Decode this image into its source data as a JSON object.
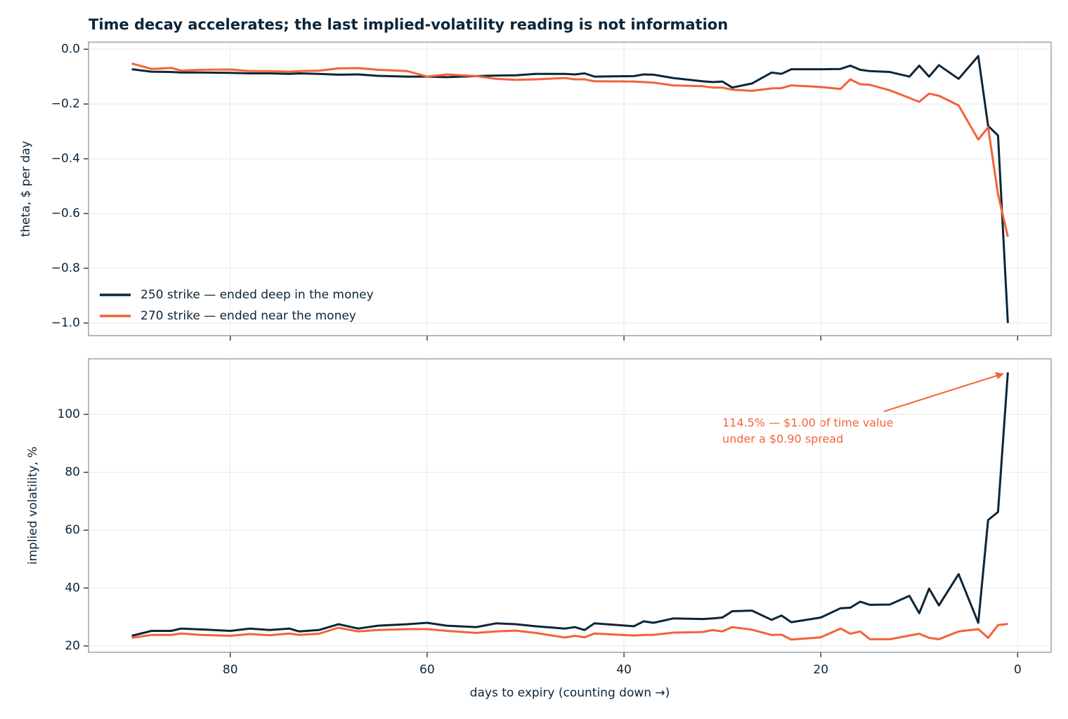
{
  "chart_data": [
    {
      "type": "line",
      "title": "Time decay accelerates; the last implied-volatility reading is not information",
      "ylabel": "theta, $ per day",
      "x": [
        90,
        88,
        86,
        85,
        83,
        80,
        78,
        76,
        74,
        73,
        71,
        69,
        67,
        65,
        62,
        60,
        58,
        55,
        53,
        51,
        49,
        46,
        45,
        44,
        43,
        39,
        38,
        37,
        35,
        32,
        31,
        30,
        29,
        27,
        25,
        24,
        23,
        20,
        18,
        17,
        16,
        15,
        13,
        11,
        10,
        9,
        8,
        6,
        4,
        3,
        2,
        1
      ],
      "series": [
        {
          "name": "250 strike — ended deep in the money",
          "color": "#0d2538",
          "values": [
            -0.073,
            -0.082,
            -0.083,
            -0.085,
            -0.085,
            -0.086,
            -0.088,
            -0.088,
            -0.09,
            -0.088,
            -0.09,
            -0.093,
            -0.092,
            -0.097,
            -0.1,
            -0.1,
            -0.102,
            -0.098,
            -0.096,
            -0.095,
            -0.09,
            -0.09,
            -0.092,
            -0.088,
            -0.1,
            -0.098,
            -0.092,
            -0.093,
            -0.105,
            -0.117,
            -0.12,
            -0.118,
            -0.14,
            -0.125,
            -0.085,
            -0.09,
            -0.073,
            -0.073,
            -0.072,
            -0.06,
            -0.075,
            -0.08,
            -0.083,
            -0.1,
            -0.06,
            -0.1,
            -0.058,
            -0.108,
            -0.025,
            -0.28,
            -0.315,
            -1.0
          ]
        },
        {
          "name": "270 strike — ended near the money",
          "color": "#f4623a",
          "values": [
            -0.052,
            -0.072,
            -0.068,
            -0.078,
            -0.075,
            -0.074,
            -0.08,
            -0.08,
            -0.082,
            -0.08,
            -0.078,
            -0.07,
            -0.069,
            -0.075,
            -0.08,
            -0.1,
            -0.092,
            -0.098,
            -0.108,
            -0.112,
            -0.11,
            -0.105,
            -0.11,
            -0.11,
            -0.117,
            -0.118,
            -0.12,
            -0.122,
            -0.132,
            -0.135,
            -0.14,
            -0.14,
            -0.148,
            -0.152,
            -0.143,
            -0.142,
            -0.132,
            -0.138,
            -0.145,
            -0.11,
            -0.128,
            -0.13,
            -0.15,
            -0.178,
            -0.192,
            -0.162,
            -0.17,
            -0.205,
            -0.33,
            -0.285,
            -0.53,
            -0.685
          ]
        }
      ],
      "xlim": [
        94.4,
        -3.4
      ],
      "xticks": [
        80,
        60,
        40,
        20,
        0
      ],
      "ylim": [
        -1.046,
        0.026
      ],
      "yticks": [
        {
          "value": 0,
          "label": "0.0"
        },
        {
          "value": -0.2,
          "label": "−0.2"
        },
        {
          "value": -0.4,
          "label": "−0.4"
        },
        {
          "value": -0.6,
          "label": "−0.6"
        },
        {
          "value": -0.8,
          "label": "−0.8"
        },
        {
          "value": -1.0,
          "label": "−1.0"
        }
      ],
      "grid": true,
      "legend": "lower left"
    },
    {
      "type": "line",
      "ylabel": "implied volatility, %",
      "xlabel": "days to expiry  (counting down →)",
      "annotation": [
        "114.5% — $1.00 of time value",
        "under a $0.90 spread"
      ],
      "x": [
        90,
        88,
        86,
        85,
        83,
        80,
        78,
        76,
        74,
        73,
        71,
        69,
        67,
        65,
        62,
        60,
        58,
        55,
        53,
        51,
        49,
        46,
        45,
        44,
        43,
        39,
        38,
        37,
        35,
        32,
        31,
        30,
        29,
        27,
        25,
        24,
        23,
        20,
        18,
        17,
        16,
        15,
        13,
        11,
        10,
        9,
        8,
        6,
        4,
        3,
        2,
        1
      ],
      "series": [
        {
          "color": "#0d2538",
          "values": [
            23.5,
            25.2,
            25.2,
            26,
            25.7,
            25.2,
            26,
            25.5,
            26,
            25,
            25.5,
            27.5,
            26,
            27,
            27.5,
            28,
            27,
            26.5,
            27.8,
            27.5,
            26.8,
            26,
            26.5,
            25.5,
            27.8,
            26.8,
            28.5,
            28,
            29.5,
            29.3,
            29.5,
            29.8,
            32,
            32.2,
            29,
            30.5,
            28.2,
            29.8,
            33,
            33.2,
            35.3,
            34.2,
            34.3,
            37.3,
            31.3,
            39.8,
            34,
            44.8,
            28,
            63.5,
            66.3,
            114.5
          ]
        },
        {
          "color": "#f4623a",
          "values": [
            22.8,
            23.8,
            23.8,
            24.3,
            23.8,
            23.5,
            24.1,
            23.7,
            24.3,
            23.8,
            24.2,
            26.3,
            25,
            25.5,
            25.8,
            25.8,
            25.2,
            24.5,
            25,
            25.3,
            24.5,
            22.9,
            23.5,
            23,
            24.3,
            23.6,
            23.8,
            23.8,
            24.6,
            24.8,
            25.5,
            25,
            26.5,
            25.6,
            23.8,
            23.9,
            22.2,
            23,
            26,
            24.2,
            25,
            22.3,
            22.3,
            23.6,
            24.2,
            22.8,
            22.3,
            25,
            25.8,
            22.8,
            27.2,
            27.6
          ]
        }
      ],
      "xlim": [
        94.4,
        -3.4
      ],
      "xticks": [
        80,
        60,
        40,
        20,
        0
      ],
      "ylim": [
        17.8,
        119.2
      ],
      "yticks": [
        20,
        40,
        60,
        80,
        100
      ],
      "grid": true
    }
  ]
}
